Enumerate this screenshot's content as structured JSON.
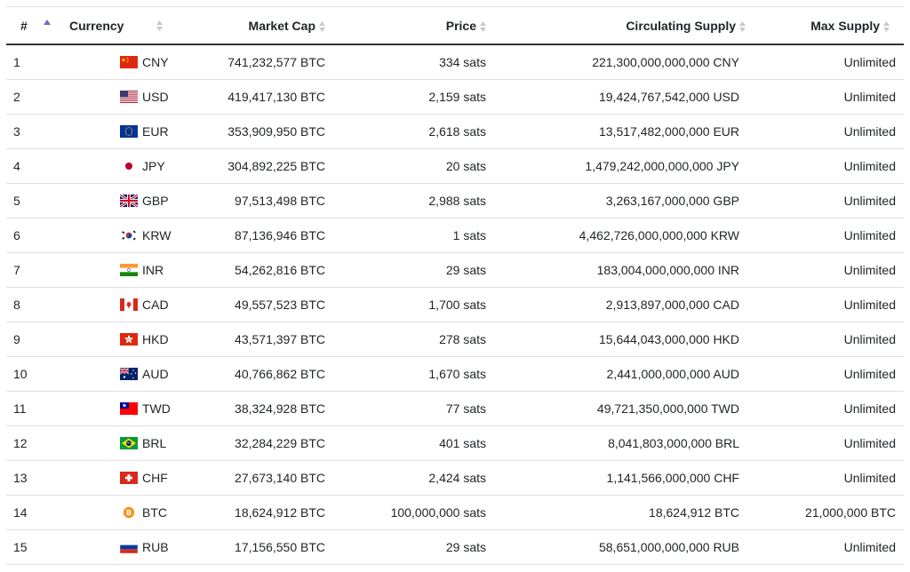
{
  "table": {
    "headers": {
      "rank": "#",
      "currency": "Currency",
      "market_cap": "Market Cap",
      "price": "Price",
      "circulating_supply": "Circulating Supply",
      "max_supply": "Max Supply"
    },
    "rows": [
      {
        "rank": "1",
        "flag": "cn-flag-icon",
        "code": "CNY",
        "market_cap": "741,232,577 BTC",
        "price": "334 sats",
        "supply": "221,300,000,000,000 CNY",
        "max": "Unlimited"
      },
      {
        "rank": "2",
        "flag": "us-flag-icon",
        "code": "USD",
        "market_cap": "419,417,130 BTC",
        "price": "2,159 sats",
        "supply": "19,424,767,542,000 USD",
        "max": "Unlimited"
      },
      {
        "rank": "3",
        "flag": "eu-flag-icon",
        "code": "EUR",
        "market_cap": "353,909,950 BTC",
        "price": "2,618 sats",
        "supply": "13,517,482,000,000 EUR",
        "max": "Unlimited"
      },
      {
        "rank": "4",
        "flag": "jp-flag-icon",
        "code": "JPY",
        "market_cap": "304,892,225 BTC",
        "price": "20 sats",
        "supply": "1,479,242,000,000,000 JPY",
        "max": "Unlimited"
      },
      {
        "rank": "5",
        "flag": "gb-flag-icon",
        "code": "GBP",
        "market_cap": "97,513,498 BTC",
        "price": "2,988 sats",
        "supply": "3,263,167,000,000 GBP",
        "max": "Unlimited"
      },
      {
        "rank": "6",
        "flag": "kr-flag-icon",
        "code": "KRW",
        "market_cap": "87,136,946 BTC",
        "price": "1 sats",
        "supply": "4,462,726,000,000,000 KRW",
        "max": "Unlimited"
      },
      {
        "rank": "7",
        "flag": "in-flag-icon",
        "code": "INR",
        "market_cap": "54,262,816 BTC",
        "price": "29 sats",
        "supply": "183,004,000,000,000 INR",
        "max": "Unlimited"
      },
      {
        "rank": "8",
        "flag": "ca-flag-icon",
        "code": "CAD",
        "market_cap": "49,557,523 BTC",
        "price": "1,700 sats",
        "supply": "2,913,897,000,000 CAD",
        "max": "Unlimited"
      },
      {
        "rank": "9",
        "flag": "hk-flag-icon",
        "code": "HKD",
        "market_cap": "43,571,397 BTC",
        "price": "278 sats",
        "supply": "15,644,043,000,000 HKD",
        "max": "Unlimited"
      },
      {
        "rank": "10",
        "flag": "au-flag-icon",
        "code": "AUD",
        "market_cap": "40,766,862 BTC",
        "price": "1,670 sats",
        "supply": "2,441,000,000,000 AUD",
        "max": "Unlimited"
      },
      {
        "rank": "11",
        "flag": "tw-flag-icon",
        "code": "TWD",
        "market_cap": "38,324,928 BTC",
        "price": "77 sats",
        "supply": "49,721,350,000,000 TWD",
        "max": "Unlimited"
      },
      {
        "rank": "12",
        "flag": "br-flag-icon",
        "code": "BRL",
        "market_cap": "32,284,229 BTC",
        "price": "401 sats",
        "supply": "8,041,803,000,000 BRL",
        "max": "Unlimited"
      },
      {
        "rank": "13",
        "flag": "ch-flag-icon",
        "code": "CHF",
        "market_cap": "27,673,140 BTC",
        "price": "2,424 sats",
        "supply": "1,141,566,000,000 CHF",
        "max": "Unlimited"
      },
      {
        "rank": "14",
        "flag": "btc-coin-icon",
        "code": "BTC",
        "market_cap": "18,624,912 BTC",
        "price": "100,000,000 sats",
        "supply": "18,624,912 BTC",
        "max": "21,000,000 BTC"
      },
      {
        "rank": "15",
        "flag": "ru-flag-icon",
        "code": "RUB",
        "market_cap": "17,156,550 BTC",
        "price": "29 sats",
        "supply": "58,651,000,000,000 RUB",
        "max": "Unlimited"
      }
    ]
  },
  "colors": {
    "header_border": "#333333",
    "row_border": "#dee2e6",
    "sort_active": "#5b73c9",
    "sort_inactive": "#c8c8c8"
  }
}
